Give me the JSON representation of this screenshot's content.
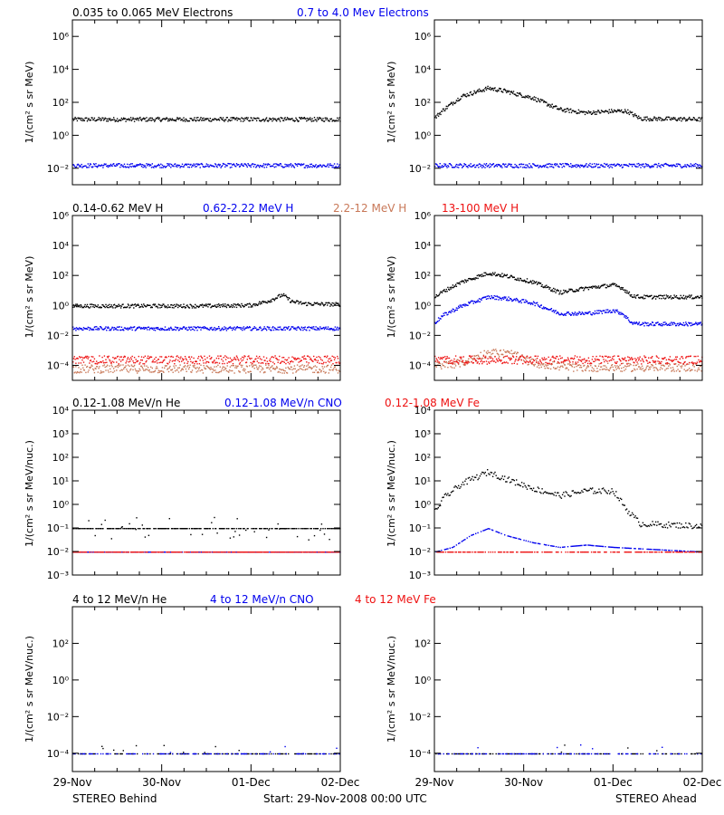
{
  "figure": {
    "footer_left": "STEREO Behind",
    "footer_center": "Start: 29-Nov-2008 00:00 UTC",
    "footer_right": "STEREO Ahead"
  },
  "colors": {
    "black": "#000000",
    "blue": "#0000ee",
    "salmon": "#c87858",
    "red": "#ee1111"
  },
  "rows": [
    {
      "id": "electrons",
      "legend": [
        {
          "text": "0.035 to 0.065 MeV Electrons",
          "color": "#000000"
        },
        {
          "text": "0.7 to 4.0 Mev Electrons",
          "color": "#0000ee"
        }
      ],
      "ylabel": "1/(cm² s sr MeV)",
      "ytick_labels": [
        "10⁶",
        "10⁴",
        "10²",
        "10⁰",
        "10⁻²"
      ]
    },
    {
      "id": "protons",
      "legend": [
        {
          "text": "0.14-0.62 MeV H",
          "color": "#000000"
        },
        {
          "text": "0.62-2.22 MeV H",
          "color": "#0000ee"
        },
        {
          "text": "2.2-12 MeV H",
          "color": "#c87858"
        },
        {
          "text": "13-100 MeV H",
          "color": "#ee1111"
        }
      ],
      "ylabel": "1/(cm² s sr MeV)",
      "ytick_labels": [
        "10⁶",
        "10⁴",
        "10²",
        "10⁰",
        "10⁻²",
        "10⁻⁴"
      ]
    },
    {
      "id": "low-heavy",
      "legend": [
        {
          "text": "0.12-1.08 MeV/n He",
          "color": "#000000"
        },
        {
          "text": "0.12-1.08 MeV/n CNO",
          "color": "#0000ee"
        },
        {
          "text": "0.12-1.08 MeV Fe",
          "color": "#ee1111"
        }
      ],
      "ylabel": "1/(cm² s sr MeV/nuc.)",
      "ytick_labels": [
        "10⁴",
        "10³",
        "10²",
        "10¹",
        "10⁰",
        "10⁻¹",
        "10⁻²",
        "10⁻³"
      ]
    },
    {
      "id": "high-heavy",
      "legend": [
        {
          "text": "4 to 12 MeV/n He",
          "color": "#000000"
        },
        {
          "text": "4 to 12 MeV/n CNO",
          "color": "#0000ee"
        },
        {
          "text": "4 to 12 MeV Fe",
          "color": "#ee1111"
        }
      ],
      "ylabel": "1/(cm² s sr MeV/nuc.)",
      "ytick_labels": [
        "10²",
        "10⁰",
        "10⁻²",
        "10⁻⁴"
      ]
    }
  ],
  "xtick_labels": [
    "29-Nov",
    "30-Nov",
    "01-Dec",
    "02-Dec"
  ],
  "chart_data": [
    {
      "type": "scatter",
      "panel": "STEREO Behind electrons",
      "x_unit": "day",
      "xlim": [
        0,
        3
      ],
      "yscale": "log",
      "ylim": [
        -3,
        7
      ],
      "series": [
        {
          "name": "0.035 to 0.065 MeV Electrons",
          "color": "#000000",
          "x": [
            0,
            3
          ],
          "y_log10": [
            1.0,
            1.0
          ]
        },
        {
          "name": "0.7 to 4.0 Mev Electrons",
          "color": "#0000ee",
          "x": [
            0,
            3
          ],
          "y_log10": [
            -1.8,
            -1.8
          ]
        }
      ]
    },
    {
      "type": "scatter",
      "panel": "STEREO Ahead electrons",
      "x_unit": "day",
      "xlim": [
        0,
        3
      ],
      "yscale": "log",
      "ylim": [
        -3,
        7
      ],
      "series": [
        {
          "name": "0.035 to 0.065 MeV Electrons",
          "color": "#000000",
          "x": [
            0,
            0.1,
            0.3,
            0.6,
            0.8,
            1.1,
            1.4,
            1.7,
            2.0,
            2.15,
            2.3,
            3.0
          ],
          "y_log10": [
            1.1,
            1.6,
            2.4,
            2.9,
            2.7,
            2.3,
            1.6,
            1.4,
            1.5,
            1.5,
            1.05,
            1.0
          ]
        },
        {
          "name": "0.7 to 4.0 Mev Electrons",
          "color": "#0000ee",
          "x": [
            0,
            3
          ],
          "y_log10": [
            -1.8,
            -1.8
          ]
        }
      ]
    },
    {
      "type": "scatter",
      "panel": "STEREO Behind protons",
      "x_unit": "day",
      "xlim": [
        0,
        3
      ],
      "yscale": "log",
      "ylim": [
        -5,
        6
      ],
      "series": [
        {
          "name": "0.14-0.62 MeV H",
          "color": "#000000",
          "x": [
            0,
            1.5,
            2.0,
            2.2,
            2.35,
            2.45,
            2.6,
            3.0
          ],
          "y_log10": [
            0.0,
            0.0,
            0.05,
            0.35,
            0.75,
            0.3,
            0.15,
            0.1
          ]
        },
        {
          "name": "0.62-2.22 MeV H",
          "color": "#0000ee",
          "x": [
            0,
            3
          ],
          "y_log10": [
            -1.5,
            -1.5
          ]
        },
        {
          "name": "2.2-12 MeV H",
          "color": "#c87858",
          "x": [
            0,
            3
          ],
          "y_log10": [
            -4.2,
            -4.2
          ]
        },
        {
          "name": "13-100 MeV H",
          "color": "#ee1111",
          "x": [
            0,
            3
          ],
          "y_log10": [
            -3.6,
            -3.6
          ]
        }
      ]
    },
    {
      "type": "scatter",
      "panel": "STEREO Ahead protons",
      "x_unit": "day",
      "xlim": [
        0,
        3
      ],
      "yscale": "log",
      "ylim": [
        -5,
        6
      ],
      "series": [
        {
          "name": "0.14-0.62 MeV H",
          "color": "#000000",
          "x": [
            0,
            0.1,
            0.3,
            0.6,
            0.8,
            1.1,
            1.4,
            1.7,
            2.0,
            2.1,
            2.2,
            2.3,
            3.0
          ],
          "y_log10": [
            0.6,
            1.0,
            1.6,
            2.2,
            2.0,
            1.6,
            0.9,
            1.2,
            1.4,
            1.2,
            0.7,
            0.6,
            0.6
          ]
        },
        {
          "name": "0.62-2.22 MeV H",
          "color": "#0000ee",
          "x": [
            0,
            0.1,
            0.3,
            0.6,
            0.8,
            1.1,
            1.4,
            1.7,
            2.0,
            2.1,
            2.2,
            2.3,
            3.0
          ],
          "y_log10": [
            -1.1,
            -0.6,
            0.0,
            0.6,
            0.5,
            0.2,
            -0.5,
            -0.5,
            -0.3,
            -0.5,
            -1.1,
            -1.2,
            -1.2
          ]
        },
        {
          "name": "2.2-12 MeV H",
          "color": "#c87858",
          "x": [
            0,
            0.3,
            0.6,
            0.85,
            1.1,
            1.5,
            3.0
          ],
          "y_log10": [
            -4.0,
            -3.8,
            -3.1,
            -3.2,
            -3.8,
            -4.1,
            -4.1
          ]
        },
        {
          "name": "13-100 MeV H",
          "color": "#ee1111",
          "x": [
            0,
            3
          ],
          "y_log10": [
            -3.6,
            -3.6
          ]
        }
      ]
    },
    {
      "type": "scatter",
      "panel": "STEREO Behind low-energy heavy ions",
      "x_unit": "day",
      "xlim": [
        0,
        3
      ],
      "yscale": "log",
      "ylim": [
        -3,
        4
      ],
      "series": [
        {
          "name": "0.12-1.08 MeV/n He",
          "color": "#000000",
          "x": [
            0,
            3
          ],
          "y_log10": [
            -1.0,
            -1.0
          ]
        },
        {
          "name": "0.12-1.08 MeV/n CNO",
          "color": "#0000ee",
          "x": [
            0,
            3
          ],
          "y_log10": [
            -2.0,
            -2.0
          ]
        },
        {
          "name": "0.12-1.08 MeV Fe",
          "color": "#ee1111",
          "x": [
            0,
            3
          ],
          "y_log10": [
            -2.0,
            -2.0
          ]
        }
      ]
    },
    {
      "type": "scatter",
      "panel": "STEREO Ahead low-energy heavy ions",
      "x_unit": "day",
      "xlim": [
        0,
        3
      ],
      "yscale": "log",
      "ylim": [
        -3,
        4
      ],
      "series": [
        {
          "name": "0.12-1.08 MeV/n He",
          "color": "#000000",
          "x": [
            0,
            0.1,
            0.3,
            0.6,
            0.8,
            1.1,
            1.4,
            1.7,
            2.0,
            2.15,
            2.3,
            3.0
          ],
          "y_log10": [
            -0.3,
            0.3,
            0.9,
            1.4,
            1.1,
            0.7,
            0.4,
            0.6,
            0.6,
            -0.2,
            -0.8,
            -0.9
          ]
        },
        {
          "name": "0.12-1.08 MeV/n CNO",
          "color": "#0000ee",
          "x": [
            0,
            0.2,
            0.4,
            0.6,
            0.8,
            1.1,
            1.4,
            1.7,
            2.0,
            3.0
          ],
          "y_log10": [
            -2.0,
            -1.8,
            -1.3,
            -1.0,
            -1.3,
            -1.6,
            -1.8,
            -1.7,
            -1.8,
            -2.0
          ]
        },
        {
          "name": "0.12-1.08 MeV Fe",
          "color": "#ee1111",
          "x": [
            0,
            3
          ],
          "y_log10": [
            -2.0,
            -2.0
          ]
        }
      ]
    },
    {
      "type": "scatter",
      "panel": "STEREO Behind high-energy heavy ions",
      "x_unit": "day",
      "xlim": [
        0,
        3
      ],
      "yscale": "log",
      "ylim": [
        -5,
        4
      ],
      "series": [
        {
          "name": "4 to 12 MeV/n He",
          "color": "#000000",
          "x": [
            0,
            3
          ],
          "y_log10": [
            -4.0,
            -4.0
          ]
        },
        {
          "name": "4 to 12 MeV/n CNO",
          "color": "#0000ee",
          "x": [
            0,
            3
          ],
          "y_log10": [
            -4.0,
            -4.0
          ]
        },
        {
          "name": "4 to 12 MeV Fe",
          "color": "#ee1111",
          "x": [],
          "y_log10": []
        }
      ]
    },
    {
      "type": "scatter",
      "panel": "STEREO Ahead high-energy heavy ions",
      "x_unit": "day",
      "xlim": [
        0,
        3
      ],
      "yscale": "log",
      "ylim": [
        -5,
        4
      ],
      "series": [
        {
          "name": "4 to 12 MeV/n He",
          "color": "#000000",
          "x": [
            0,
            3
          ],
          "y_log10": [
            -4.0,
            -4.0
          ]
        },
        {
          "name": "4 to 12 MeV/n CNO",
          "color": "#0000ee",
          "x": [
            0,
            3
          ],
          "y_log10": [
            -4.0,
            -4.0
          ]
        },
        {
          "name": "4 to 12 MeV Fe",
          "color": "#ee1111",
          "x": [],
          "y_log10": []
        }
      ]
    }
  ]
}
